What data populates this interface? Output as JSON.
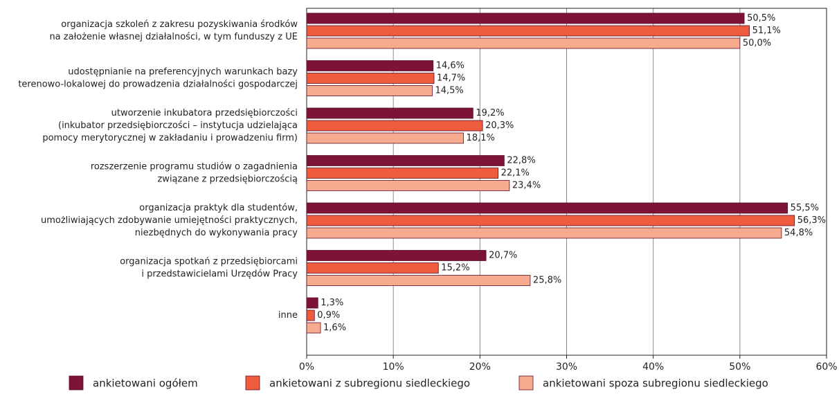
{
  "chart_data": {
    "type": "bar",
    "orientation": "horizontal",
    "categories": [
      [
        "organizacja szkoleń z zakresu pozyskiwania środków",
        "na założenie własnej działalności, w tym funduszy z UE"
      ],
      [
        "udostępnianie na preferencyjnych warunkach bazy",
        "terenowo-lokalowej do prowadzenia działalności gospodarczej"
      ],
      [
        "utworzenie inkubatora przedsiębiorczości",
        "(inkubator przedsiębiorczości – instytucja udzielająca",
        "pomocy merytorycznej w zakładaniu i prowadzeniu firm)"
      ],
      [
        "rozszerzenie programu studiów o zagadnienia",
        "związane z przedsiębiorczością"
      ],
      [
        "organizacja praktyk dla studentów,",
        "umożliwiających zdobywanie umiejętności praktycznych,",
        "niezbędnych do wykonywania pracy"
      ],
      [
        "organizacja spotkań z przedsiębiorcami",
        "i przedstawicielami Urzędów Pracy"
      ],
      [
        "inne"
      ]
    ],
    "series": [
      {
        "name": "ankietowani ogółem",
        "color": "#7d1436",
        "values": [
          50.5,
          14.6,
          19.2,
          22.8,
          55.5,
          20.7,
          1.3
        ],
        "value_labels": [
          "50,5%",
          "14,6%",
          "19,2%",
          "22,8%",
          "55,5%",
          "20,7%",
          "1,3%"
        ]
      },
      {
        "name": "ankietowani z subregionu siedleckiego",
        "color": "#ee5b3d",
        "values": [
          51.1,
          14.7,
          20.3,
          22.1,
          56.3,
          15.2,
          0.9
        ],
        "value_labels": [
          "51,1%",
          "14,7%",
          "20,3%",
          "22,1%",
          "56,3%",
          "15,2%",
          "0,9%"
        ]
      },
      {
        "name": "ankietowani spoza subregionu siedleckiego",
        "color": "#f6aa8e",
        "values": [
          50.0,
          14.5,
          18.1,
          23.4,
          54.8,
          25.8,
          1.6
        ],
        "value_labels": [
          "50,0%",
          "14,5%",
          "18,1%",
          "23,4%",
          "54,8%",
          "25,8%",
          "1,6%"
        ]
      }
    ],
    "xlim": [
      0,
      60
    ],
    "xticks": [
      {
        "value": 0,
        "label": "0%"
      },
      {
        "value": 10,
        "label": "10%"
      },
      {
        "value": 20,
        "label": "20%"
      },
      {
        "value": 30,
        "label": "30%"
      },
      {
        "value": 40,
        "label": "40%"
      },
      {
        "value": 50,
        "label": "50%"
      },
      {
        "value": 60,
        "label": "60%"
      }
    ],
    "grid": true,
    "legend": "bottom"
  }
}
